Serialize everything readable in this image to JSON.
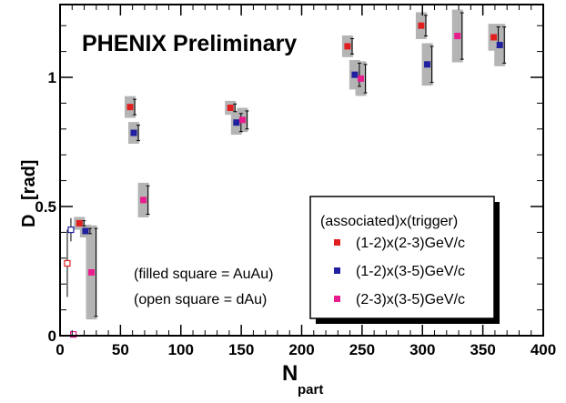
{
  "chart_data": {
    "type": "scatter",
    "title": "PHENIX Preliminary",
    "xlabel": "N",
    "xlabel_sub": "part",
    "ylabel": "D",
    "ylabel_unit": "[rad]",
    "xlim": [
      0,
      400
    ],
    "ylim": [
      0,
      1.3
    ],
    "x_ticks": [
      0,
      50,
      100,
      150,
      200,
      250,
      300,
      350,
      400
    ],
    "y_ticks": [
      {
        "value": 0,
        "label": "0"
      },
      {
        "value": 0.5,
        "label": "0.5"
      },
      {
        "value": 1,
        "label": "1"
      }
    ],
    "legend": {
      "title": "(associated)x(trigger)",
      "placement": "center-right"
    },
    "notes": [
      "(filled square = AuAu)",
      "(open square = dAu)"
    ],
    "series": [
      {
        "name": "(1-2)x(2-3)GeV/c",
        "color": "#e02020",
        "auau": [
          {
            "x": 16,
            "y": 0.435,
            "err": 0.01
          },
          {
            "x": 58,
            "y": 0.885,
            "err": 0.03
          },
          {
            "x": 141,
            "y": 0.882,
            "err": 0.015
          },
          {
            "x": 238,
            "y": 1.12,
            "err": 0.03
          },
          {
            "x": 299,
            "y": 1.2,
            "err": 0.04
          },
          {
            "x": 359,
            "y": 1.155,
            "err": 0.04
          }
        ],
        "dau": [
          {
            "x": 6,
            "y": 0.28,
            "err": 0.13
          }
        ]
      },
      {
        "name": "(1-2)x(3-5)GeV/c",
        "color": "#2020a0",
        "auau": [
          {
            "x": 21,
            "y": 0.405,
            "err": 0.01
          },
          {
            "x": 61,
            "y": 0.785,
            "err": 0.03
          },
          {
            "x": 146,
            "y": 0.825,
            "err": 0.035
          },
          {
            "x": 244,
            "y": 1.01,
            "err": 0.045
          },
          {
            "x": 304,
            "y": 1.05,
            "err": 0.07
          },
          {
            "x": 364,
            "y": 1.125,
            "err": 0.07
          }
        ],
        "dau": [
          {
            "x": 9,
            "y": 0.41,
            "err": 0.045
          }
        ]
      },
      {
        "name": "(2-3)x(3-5)GeV/c",
        "color": "#e81c8c",
        "auau": [
          {
            "x": 26,
            "y": 0.245,
            "err": 0.17
          },
          {
            "x": 69,
            "y": 0.525,
            "err": 0.055
          },
          {
            "x": 151,
            "y": 0.835,
            "err": 0.035
          },
          {
            "x": 249,
            "y": 0.995,
            "err": 0.055
          },
          {
            "x": 329,
            "y": 1.16,
            "err": 0.09
          }
        ],
        "dau": [
          {
            "x": 11,
            "y": 0.005,
            "err": 0.0
          }
        ]
      }
    ]
  }
}
